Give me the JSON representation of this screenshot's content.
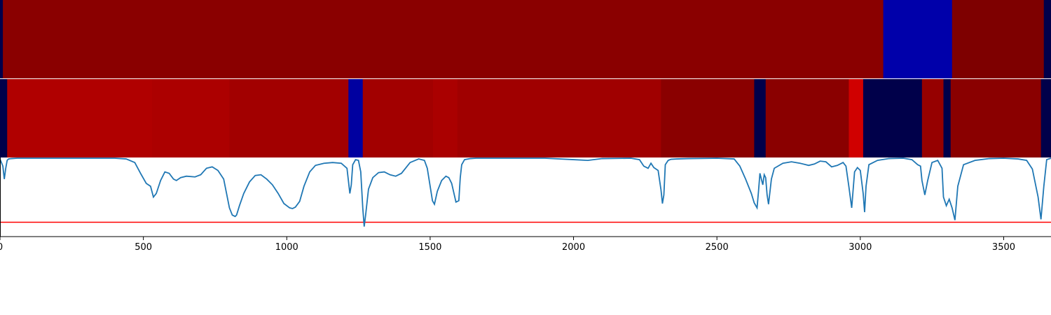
{
  "chart_data": {
    "type": "heatmap",
    "title": "",
    "xlabel": "",
    "ylabel": "",
    "xlim": [
      0,
      3665
    ],
    "x_ticks": [
      0,
      500,
      1000,
      1500,
      2000,
      2500,
      3000,
      3500
    ],
    "x_tick_labels": [
      "0",
      "500",
      "1000",
      "1500",
      "2000",
      "2500",
      "3000",
      "3500"
    ],
    "colormap": "seismic",
    "heatmap_rows": [
      {
        "segments": [
          {
            "start": 0,
            "end": 10,
            "color": "#00004a"
          },
          {
            "start": 10,
            "end": 3080,
            "color": "#8a0000"
          },
          {
            "start": 3080,
            "end": 3320,
            "color": "#0000aa"
          },
          {
            "start": 3320,
            "end": 3640,
            "color": "#7e0000"
          },
          {
            "start": 3640,
            "end": 3665,
            "color": "#00004a"
          }
        ]
      },
      {
        "segments": [
          {
            "start": 0,
            "end": 25,
            "color": "#00004a"
          },
          {
            "start": 25,
            "end": 530,
            "color": "#b00000"
          },
          {
            "start": 530,
            "end": 800,
            "color": "#ac0000"
          },
          {
            "start": 800,
            "end": 1215,
            "color": "#a20000"
          },
          {
            "start": 1215,
            "end": 1265,
            "color": "#0000a0"
          },
          {
            "start": 1265,
            "end": 1510,
            "color": "#a20000"
          },
          {
            "start": 1510,
            "end": 1595,
            "color": "#aa0000"
          },
          {
            "start": 1595,
            "end": 2305,
            "color": "#a00000"
          },
          {
            "start": 2305,
            "end": 2630,
            "color": "#8a0000"
          },
          {
            "start": 2630,
            "end": 2670,
            "color": "#00004a"
          },
          {
            "start": 2670,
            "end": 2960,
            "color": "#8a0000"
          },
          {
            "start": 2960,
            "end": 3010,
            "color": "#d00000"
          },
          {
            "start": 3010,
            "end": 3215,
            "color": "#00004a"
          },
          {
            "start": 3215,
            "end": 3290,
            "color": "#960000"
          },
          {
            "start": 3290,
            "end": 3315,
            "color": "#00004a"
          },
          {
            "start": 3315,
            "end": 3630,
            "color": "#8a0000"
          },
          {
            "start": 3630,
            "end": 3665,
            "color": "#00004a"
          }
        ]
      }
    ],
    "line_series": {
      "color": "#1f77b4",
      "ylim": [
        -0.1,
        1.0
      ],
      "threshold": {
        "value": 0.1,
        "color": "#ff0000"
      },
      "x": [
        0,
        10,
        15,
        20,
        25,
        30,
        40,
        60,
        100,
        200,
        300,
        400,
        440,
        470,
        490,
        510,
        525,
        535,
        545,
        560,
        575,
        590,
        605,
        615,
        630,
        650,
        680,
        700,
        720,
        740,
        760,
        780,
        790,
        800,
        810,
        820,
        825,
        835,
        850,
        870,
        890,
        910,
        930,
        950,
        970,
        990,
        1010,
        1020,
        1030,
        1045,
        1060,
        1080,
        1100,
        1130,
        1160,
        1190,
        1210,
        1220,
        1225,
        1230,
        1240,
        1250,
        1258,
        1265,
        1270,
        1275,
        1285,
        1300,
        1320,
        1340,
        1360,
        1380,
        1400,
        1430,
        1460,
        1480,
        1490,
        1500,
        1508,
        1515,
        1525,
        1540,
        1555,
        1565,
        1575,
        1590,
        1600,
        1605,
        1610,
        1620,
        1640,
        1660,
        1700,
        1800,
        1900,
        2000,
        2050,
        2100,
        2200,
        2230,
        2245,
        2260,
        2270,
        2280,
        2295,
        2305,
        2310,
        2315,
        2320,
        2330,
        2340,
        2360,
        2400,
        2500,
        2560,
        2580,
        2600,
        2620,
        2630,
        2640,
        2645,
        2650,
        2660,
        2665,
        2670,
        2675,
        2680,
        2690,
        2700,
        2730,
        2760,
        2790,
        2820,
        2840,
        2860,
        2880,
        2900,
        2920,
        2940,
        2950,
        2960,
        2970,
        2980,
        2990,
        3000,
        3010,
        3015,
        3020,
        3030,
        3060,
        3100,
        3150,
        3180,
        3200,
        3210,
        3215,
        3225,
        3235,
        3250,
        3270,
        3285,
        3290,
        3300,
        3310,
        3320,
        3330,
        3340,
        3360,
        3400,
        3450,
        3500,
        3550,
        3580,
        3600,
        3620,
        3630,
        3640,
        3650,
        3665
      ],
      "y": [
        0.98,
        0.88,
        0.7,
        0.85,
        0.96,
        0.98,
        0.985,
        0.99,
        0.99,
        0.99,
        0.99,
        0.99,
        0.98,
        0.93,
        0.78,
        0.64,
        0.6,
        0.45,
        0.5,
        0.68,
        0.8,
        0.78,
        0.7,
        0.68,
        0.72,
        0.74,
        0.73,
        0.76,
        0.85,
        0.87,
        0.82,
        0.7,
        0.5,
        0.3,
        0.2,
        0.18,
        0.2,
        0.33,
        0.5,
        0.66,
        0.75,
        0.76,
        0.7,
        0.62,
        0.5,
        0.36,
        0.3,
        0.29,
        0.31,
        0.39,
        0.6,
        0.8,
        0.89,
        0.92,
        0.93,
        0.92,
        0.85,
        0.5,
        0.62,
        0.9,
        0.97,
        0.96,
        0.8,
        0.3,
        0.04,
        0.2,
        0.56,
        0.72,
        0.79,
        0.8,
        0.76,
        0.74,
        0.78,
        0.93,
        0.98,
        0.96,
        0.85,
        0.6,
        0.4,
        0.35,
        0.53,
        0.68,
        0.74,
        0.72,
        0.64,
        0.38,
        0.4,
        0.72,
        0.9,
        0.97,
        0.985,
        0.99,
        0.99,
        0.99,
        0.99,
        0.97,
        0.96,
        0.985,
        0.99,
        0.97,
        0.88,
        0.85,
        0.92,
        0.86,
        0.82,
        0.55,
        0.36,
        0.48,
        0.9,
        0.96,
        0.975,
        0.98,
        0.985,
        0.99,
        0.98,
        0.88,
        0.7,
        0.5,
        0.37,
        0.3,
        0.53,
        0.78,
        0.62,
        0.76,
        0.72,
        0.48,
        0.35,
        0.7,
        0.85,
        0.92,
        0.94,
        0.92,
        0.89,
        0.91,
        0.95,
        0.94,
        0.87,
        0.89,
        0.93,
        0.88,
        0.6,
        0.3,
        0.8,
        0.86,
        0.82,
        0.5,
        0.24,
        0.6,
        0.9,
        0.96,
        0.985,
        0.99,
        0.97,
        0.9,
        0.88,
        0.68,
        0.48,
        0.68,
        0.93,
        0.96,
        0.85,
        0.45,
        0.33,
        0.42,
        0.3,
        0.13,
        0.6,
        0.9,
        0.96,
        0.985,
        0.99,
        0.98,
        0.96,
        0.84,
        0.45,
        0.14,
        0.6,
        0.97,
        0.99
      ]
    }
  }
}
